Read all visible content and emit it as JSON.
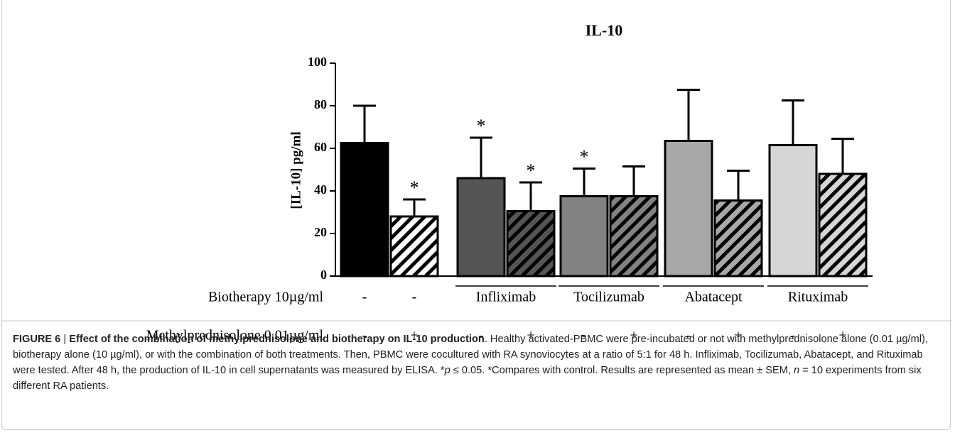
{
  "chart_data": {
    "type": "bar",
    "title": "IL-10",
    "y_label": "[IL-10] pg/ml",
    "categories": [
      null,
      null,
      null,
      null,
      null,
      null,
      null,
      null,
      null,
      null
    ],
    "values": [
      62.5,
      28,
      46,
      30.5,
      37.5,
      37.5,
      63.5,
      35.5,
      61.5,
      48
    ],
    "errors": [
      17.5,
      8,
      19,
      13.5,
      13,
      14,
      24,
      14,
      21,
      16.5
    ],
    "colors": [
      "#000000",
      "#ffffff",
      "#555555",
      "#555555",
      "#828282",
      "#828282",
      "#a8a8a8",
      "#a8a8a8",
      "#d6d6d6",
      "#d6d6d6"
    ],
    "hatched": [
      false,
      true,
      false,
      true,
      false,
      true,
      false,
      true,
      false,
      true
    ],
    "annotations": [
      null,
      "*",
      "*",
      "*",
      "*",
      null,
      null,
      null,
      null,
      null
    ],
    "ylim": [
      0,
      100
    ],
    "yticks": [
      0,
      20,
      40,
      60,
      80,
      100
    ],
    "biotherapy_row": {
      "label": "Biotherapy 10µg/ml",
      "entries": [
        "-",
        "-",
        "Infliximab",
        "Tocilizumab",
        "Abatacept",
        "Rituximab"
      ]
    },
    "methylprednisolone_row": {
      "label": "Methylprednisolone 0.01µg/ml",
      "entries": [
        "-",
        "+",
        "-",
        "+",
        "-",
        "+",
        "-",
        "+",
        "-",
        "+"
      ]
    }
  },
  "caption": {
    "figure_label": "FIGURE 6",
    "separator": "|",
    "title": "Effect of the combination of methylprednisolone and biotherapy on IL-10 production",
    "segments": [
      ". Healthy activated-PBMC were pre-incubated or not with methylprednisolone alone (0.01 µg/ml), biotherapy alone (10 µg/ml), or with the combination of both treatments. Then, PBMC were cocultured with RA synoviocytes at a ratio of 5:1 for 48 h. Infliximab, Tocilizumab, Abatacept, and Rituximab were tested. After 48 h, the production of IL-10 in cell supernatants was measured by ELISA. *",
      "p",
      " ≤ 0.05. *Compares with control. Results are represented as mean ± SEM, ",
      "n",
      " = 10 experiments from six different RA patients."
    ]
  }
}
